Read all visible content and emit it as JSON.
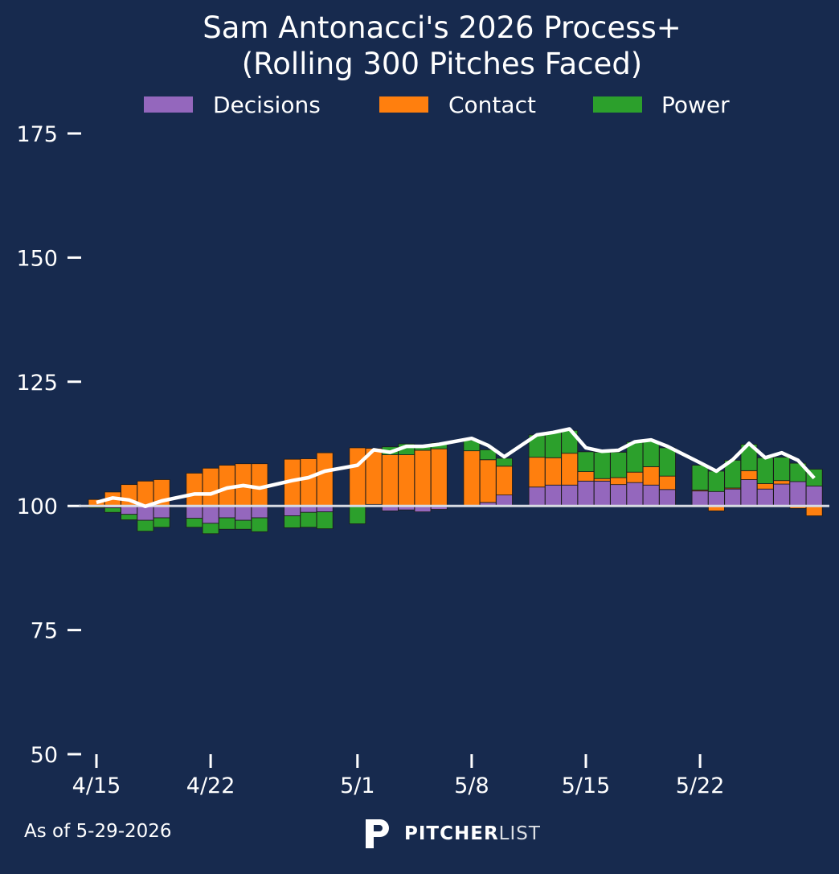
{
  "chart_data": {
    "type": "bar",
    "title_line1": "Sam Antonacci's 2026 Process+",
    "title_line2": "(Rolling 300 Pitches Faced)",
    "legend": [
      {
        "label": "Decisions",
        "color": "#9467bd"
      },
      {
        "label": "Contact",
        "color": "#ff7f0e"
      },
      {
        "label": "Power",
        "color": "#2ca02c"
      }
    ],
    "ylim": [
      50,
      175
    ],
    "yticks": [
      50,
      75,
      100,
      125,
      150,
      175
    ],
    "baseline": 100,
    "xticks": [
      "4/15",
      "4/22",
      "5/1",
      "5/8",
      "5/15",
      "5/22"
    ],
    "line_color": "#ffffff",
    "series": [
      {
        "name": "Decisions",
        "values": [
          [
            "4/15",
            -0.2
          ],
          [
            "4/16",
            -0.4
          ],
          [
            "4/17",
            -1.7
          ],
          [
            "4/18",
            -2.9
          ],
          [
            "4/19",
            -2.4
          ],
          [
            "4/21",
            -2.5
          ],
          [
            "4/22",
            -3.5
          ],
          [
            "4/23",
            -2.4
          ],
          [
            "4/24",
            -2.9
          ],
          [
            "4/25",
            -2.4
          ],
          [
            "4/27",
            -2.0
          ],
          [
            "4/28",
            -1.3
          ],
          [
            "4/29",
            -1.2
          ],
          [
            "5/1",
            0.0
          ],
          [
            "5/2",
            0.3
          ],
          [
            "5/3",
            -1.0
          ],
          [
            "5/4",
            -0.8
          ],
          [
            "5/5",
            -1.2
          ],
          [
            "5/6",
            -0.7
          ],
          [
            "5/8",
            0.0
          ],
          [
            "5/9",
            0.7
          ],
          [
            "5/10",
            2.2
          ],
          [
            "5/12",
            3.8
          ],
          [
            "5/13",
            4.2
          ],
          [
            "5/14",
            4.2
          ],
          [
            "5/15",
            5.0
          ],
          [
            "5/16",
            5.0
          ],
          [
            "5/17",
            4.3
          ],
          [
            "5/18",
            4.7
          ],
          [
            "5/19",
            4.2
          ],
          [
            "5/20",
            3.3
          ],
          [
            "5/22",
            3.0
          ],
          [
            "5/23",
            2.9
          ],
          [
            "5/24",
            3.4
          ],
          [
            "5/25",
            5.3
          ],
          [
            "5/26",
            3.4
          ],
          [
            "5/27",
            4.4
          ],
          [
            "5/28",
            4.9
          ],
          [
            "5/29",
            4.0
          ]
        ]
      },
      {
        "name": "Contact",
        "values": [
          [
            "4/15",
            1.3
          ],
          [
            "4/16",
            2.8
          ],
          [
            "4/17",
            4.3
          ],
          [
            "4/18",
            5.0
          ],
          [
            "4/19",
            5.3
          ],
          [
            "4/21",
            6.6
          ],
          [
            "4/22",
            7.6
          ],
          [
            "4/23",
            8.2
          ],
          [
            "4/24",
            8.5
          ],
          [
            "4/25",
            8.5
          ],
          [
            "4/27",
            9.4
          ],
          [
            "4/28",
            9.5
          ],
          [
            "4/29",
            10.7
          ],
          [
            "5/1",
            11.7
          ],
          [
            "5/2",
            11.3
          ],
          [
            "5/3",
            10.3
          ],
          [
            "5/4",
            10.3
          ],
          [
            "5/5",
            11.2
          ],
          [
            "5/6",
            11.5
          ],
          [
            "5/8",
            11.1
          ],
          [
            "5/9",
            8.6
          ],
          [
            "5/10",
            5.8
          ],
          [
            "5/12",
            6.0
          ],
          [
            "5/13",
            5.5
          ],
          [
            "5/14",
            6.4
          ],
          [
            "5/15",
            1.9
          ],
          [
            "5/16",
            0.5
          ],
          [
            "5/17",
            1.4
          ],
          [
            "5/18",
            2.1
          ],
          [
            "5/19",
            3.7
          ],
          [
            "5/20",
            2.7
          ],
          [
            "5/22",
            0.2
          ],
          [
            "5/23",
            -1.0
          ],
          [
            "5/24",
            0.2
          ],
          [
            "5/25",
            1.8
          ],
          [
            "5/26",
            1.1
          ],
          [
            "5/27",
            0.7
          ],
          [
            "5/28",
            -0.5
          ],
          [
            "5/29",
            -2.0
          ]
        ]
      },
      {
        "name": "Power",
        "values": [
          [
            "4/15",
            -0.2
          ],
          [
            "4/16",
            -0.9
          ],
          [
            "4/17",
            -1.1
          ],
          [
            "4/18",
            -2.2
          ],
          [
            "4/19",
            -1.9
          ],
          [
            "4/21",
            -1.8
          ],
          [
            "4/22",
            -2.1
          ],
          [
            "4/23",
            -2.3
          ],
          [
            "4/24",
            -1.8
          ],
          [
            "4/25",
            -2.8
          ],
          [
            "4/27",
            -2.4
          ],
          [
            "4/28",
            -3.0
          ],
          [
            "4/29",
            -3.4
          ],
          [
            "5/1",
            -3.6
          ],
          [
            "5/2",
            0.0
          ],
          [
            "5/3",
            1.6
          ],
          [
            "5/4",
            2.2
          ],
          [
            "5/5",
            1.1
          ],
          [
            "5/6",
            1.2
          ],
          [
            "5/8",
            2.1
          ],
          [
            "5/9",
            2.0
          ],
          [
            "5/10",
            1.6
          ],
          [
            "5/12",
            4.5
          ],
          [
            "5/13",
            5.2
          ],
          [
            "5/14",
            4.6
          ],
          [
            "5/15",
            4.0
          ],
          [
            "5/16",
            5.3
          ],
          [
            "5/17",
            5.1
          ],
          [
            "5/18",
            6.1
          ],
          [
            "5/19",
            5.1
          ],
          [
            "5/20",
            5.7
          ],
          [
            "5/22",
            5.0
          ],
          [
            "5/23",
            4.1
          ],
          [
            "5/24",
            5.6
          ],
          [
            "5/25",
            5.3
          ],
          [
            "5/26",
            5.2
          ],
          [
            "5/27",
            4.7
          ],
          [
            "5/28",
            3.7
          ],
          [
            "5/29",
            3.4
          ]
        ]
      }
    ],
    "rolling_line": [
      [
        "4/15",
        100.7
      ],
      [
        "4/16",
        101.6
      ],
      [
        "4/17",
        101.2
      ],
      [
        "4/18",
        99.9
      ],
      [
        "4/19",
        101.0
      ],
      [
        "4/21",
        102.4
      ],
      [
        "4/22",
        102.4
      ],
      [
        "4/23",
        103.6
      ],
      [
        "4/24",
        104.1
      ],
      [
        "4/25",
        103.6
      ],
      [
        "4/27",
        105.1
      ],
      [
        "4/28",
        105.7
      ],
      [
        "4/29",
        107.0
      ],
      [
        "5/1",
        108.2
      ],
      [
        "5/2",
        111.3
      ],
      [
        "5/3",
        110.8
      ],
      [
        "5/4",
        112.0
      ],
      [
        "5/5",
        112.0
      ],
      [
        "5/6",
        112.4
      ],
      [
        "5/8",
        113.6
      ],
      [
        "5/9",
        112.2
      ],
      [
        "5/10",
        109.9
      ],
      [
        "5/12",
        114.3
      ],
      [
        "5/13",
        114.8
      ],
      [
        "5/14",
        115.5
      ],
      [
        "5/15",
        111.7
      ],
      [
        "5/16",
        111.0
      ],
      [
        "5/17",
        111.2
      ],
      [
        "5/18",
        112.9
      ],
      [
        "5/19",
        113.3
      ],
      [
        "5/20",
        112.0
      ],
      [
        "5/22",
        108.7
      ],
      [
        "5/23",
        107.0
      ],
      [
        "5/24",
        109.3
      ],
      [
        "5/25",
        112.6
      ],
      [
        "5/26",
        109.7
      ],
      [
        "5/27",
        110.7
      ],
      [
        "5/28",
        109.2
      ],
      [
        "5/29",
        105.6
      ]
    ]
  },
  "footer": {
    "as_of": "As of 5-29-2026",
    "brand_bold": "PITCHER",
    "brand_light": "LIST"
  }
}
